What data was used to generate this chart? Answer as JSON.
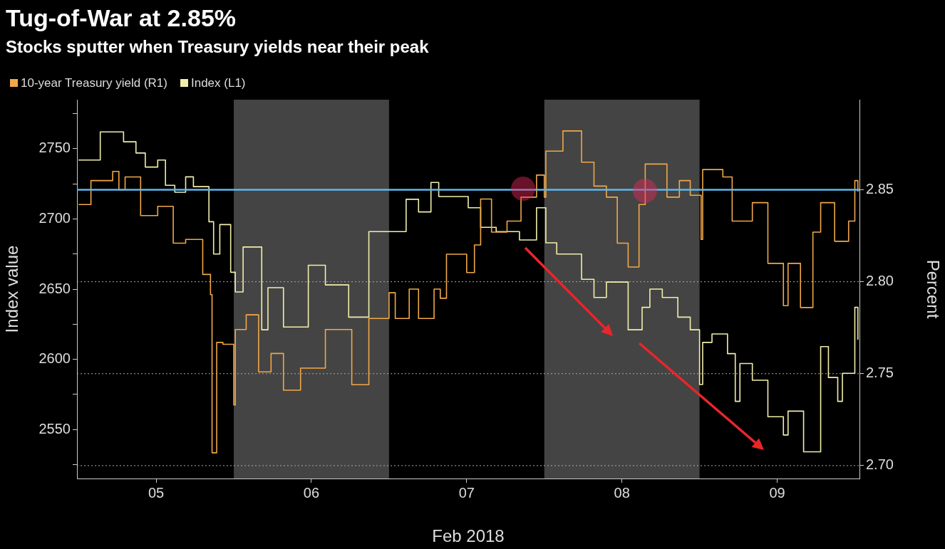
{
  "chart_data": {
    "type": "step",
    "title": "Tug-of-War at 2.85%",
    "subtitle": "Stocks sputter when Treasury yields near their peak",
    "xlabel": "Feb 2018",
    "ylabel": "Index value",
    "y2label": "Percent",
    "legend": "top left",
    "xlim": [
      4.49,
      9.53
    ],
    "xticks": [
      {
        "value": 5,
        "label": "05"
      },
      {
        "value": 6,
        "label": "06"
      },
      {
        "value": 7,
        "label": "07"
      },
      {
        "value": 8,
        "label": "08"
      },
      {
        "value": 9,
        "label": "09"
      }
    ],
    "ylim": [
      2515,
      2785
    ],
    "yticks": [
      {
        "value": 2525,
        "label": null
      },
      2550,
      {
        "value": 2575,
        "label": null
      },
      2600,
      {
        "value": 2625,
        "label": null
      },
      2650,
      {
        "value": 2675,
        "label": null
      },
      2700,
      {
        "value": 2725,
        "label": null
      },
      2750,
      {
        "value": 2775,
        "label": null
      }
    ],
    "y2lim": [
      2.693,
      2.899
    ],
    "y2ticks": [
      {
        "value": 2.7,
        "label": "2.70"
      },
      {
        "value": 2.75,
        "label": "2.75"
      },
      {
        "value": 2.8,
        "label": "2.80"
      },
      {
        "value": 2.85,
        "label": "2.85"
      }
    ],
    "grid": "y",
    "bands": [
      {
        "axis": "x",
        "from": 5.5,
        "to": 6.5,
        "color": "#444444"
      },
      {
        "axis": "x",
        "from": 7.5,
        "to": 8.5,
        "color": "#444444"
      }
    ],
    "ref_lines": [
      {
        "axis": "y2",
        "value": 2.85,
        "color": "#5cb8f0"
      }
    ],
    "series": [
      {
        "name": "10-year Treasury yield (R1)",
        "color": "#f0a848",
        "axis": "y2",
        "x": [
          4.5,
          4.58,
          4.72,
          4.76,
          4.8,
          4.9,
          5.01,
          5.11,
          5.19,
          5.3,
          5.35,
          5.36,
          5.39,
          5.43,
          5.5,
          5.51,
          5.58,
          5.66,
          5.74,
          5.82,
          5.93,
          6.09,
          6.26,
          6.37,
          6.5,
          6.54,
          6.63,
          6.69,
          6.79,
          6.83,
          6.87,
          7.0,
          7.05,
          7.09,
          7.16,
          7.26,
          7.35,
          7.45,
          7.5,
          7.51,
          7.62,
          7.74,
          7.82,
          7.9,
          7.97,
          8.04,
          8.11,
          8.15,
          8.29,
          8.37,
          8.44,
          8.51,
          8.52,
          8.65,
          8.71,
          8.84,
          8.94,
          9.04,
          9.07,
          9.15,
          9.23,
          9.28,
          9.37,
          9.46,
          9.5,
          9.52
        ],
        "values": [
          2.842,
          2.855,
          2.86,
          2.85,
          2.857,
          2.836,
          2.841,
          2.821,
          2.823,
          2.804,
          2.793,
          2.707,
          2.767,
          2.766,
          2.733,
          2.774,
          2.782,
          2.751,
          2.761,
          2.741,
          2.753,
          2.774,
          2.744,
          2.78,
          2.794,
          2.78,
          2.796,
          2.78,
          2.796,
          2.791,
          2.815,
          2.805,
          2.82,
          2.845,
          2.827,
          2.833,
          2.846,
          2.858,
          2.846,
          2.871,
          2.882,
          2.865,
          2.852,
          2.846,
          2.821,
          2.808,
          2.842,
          2.864,
          2.846,
          2.855,
          2.847,
          2.823,
          2.861,
          2.857,
          2.833,
          2.843,
          2.81,
          2.787,
          2.81,
          2.786,
          2.827,
          2.843,
          2.822,
          2.833,
          2.855,
          2.849
        ]
      },
      {
        "name": "Index (L1)",
        "color": "#f2eeaa",
        "x": [
          4.5,
          4.64,
          4.69,
          4.79,
          4.87,
          4.93,
          5.01,
          5.06,
          5.12,
          5.19,
          5.24,
          5.34,
          5.37,
          5.41,
          5.48,
          5.51,
          5.56,
          5.68,
          5.72,
          5.82,
          5.98,
          6.09,
          6.24,
          6.37,
          6.45,
          6.61,
          6.69,
          6.77,
          6.82,
          7.01,
          7.09,
          7.19,
          7.34,
          7.45,
          7.51,
          7.58,
          7.74,
          7.82,
          7.9,
          8.04,
          8.13,
          8.18,
          8.26,
          8.36,
          8.44,
          8.5,
          8.52,
          8.58,
          8.68,
          8.73,
          8.76,
          8.84,
          8.94,
          9.04,
          9.07,
          9.17,
          9.28,
          9.33,
          9.39,
          9.42,
          9.5,
          9.52
        ],
        "values": [
          2742,
          2762,
          2762,
          2755,
          2747,
          2737,
          2742,
          2724,
          2719,
          2730,
          2723,
          2698,
          2675,
          2696,
          2662,
          2648,
          2680,
          2621,
          2651,
          2623,
          2667,
          2653,
          2630,
          2691,
          2691,
          2714,
          2705,
          2726,
          2716,
          2708,
          2694,
          2691,
          2685,
          2708,
          2683,
          2675,
          2657,
          2644,
          2655,
          2621,
          2637,
          2650,
          2644,
          2630,
          2621,
          2582,
          2612,
          2618,
          2604,
          2570,
          2597,
          2585,
          2559,
          2546,
          2563,
          2534,
          2609,
          2587,
          2570,
          2590,
          2637,
          2614
        ]
      }
    ]
  }
}
